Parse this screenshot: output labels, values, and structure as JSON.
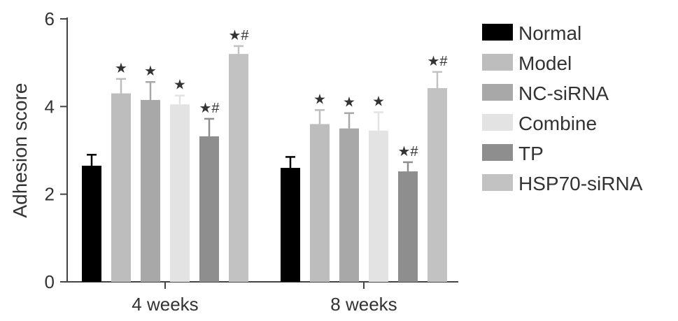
{
  "chart_data": {
    "type": "bar",
    "title": "",
    "xlabel": "",
    "ylabel": "Adhesion score",
    "ylim": [
      0,
      6
    ],
    "yticks": [
      "0",
      "2",
      "4",
      "6"
    ],
    "categories": [
      "4 weeks",
      "8 weeks"
    ],
    "grid": false,
    "legend_position": "right",
    "error_bars": true,
    "series": [
      {
        "name": "Normal",
        "color": "#000000",
        "values": [
          2.65,
          2.6
        ],
        "errors": [
          0.25,
          0.25
        ],
        "marks": [
          "",
          ""
        ]
      },
      {
        "name": "Model",
        "color": "#bdbdbd",
        "values": [
          4.3,
          3.6
        ],
        "errors": [
          0.33,
          0.32
        ],
        "marks": [
          "*",
          "*"
        ]
      },
      {
        "name": "NC-siRNA",
        "color": "#a8a8a8",
        "values": [
          4.15,
          3.5
        ],
        "errors": [
          0.41,
          0.35
        ],
        "marks": [
          "*",
          "*"
        ]
      },
      {
        "name": "Combine",
        "color": "#e3e3e3",
        "values": [
          4.05,
          3.45
        ],
        "errors": [
          0.2,
          0.42
        ],
        "marks": [
          "*",
          "*"
        ]
      },
      {
        "name": "TP",
        "color": "#8e8e8e",
        "values": [
          3.32,
          2.52
        ],
        "errors": [
          0.4,
          0.21
        ],
        "marks": [
          "*#",
          "*#"
        ]
      },
      {
        "name": "HSP70-siRNA",
        "color": "#c2c2c2",
        "values": [
          5.2,
          4.42
        ],
        "errors": [
          0.18,
          0.37
        ],
        "marks": [
          "*#",
          "*#"
        ]
      }
    ]
  }
}
